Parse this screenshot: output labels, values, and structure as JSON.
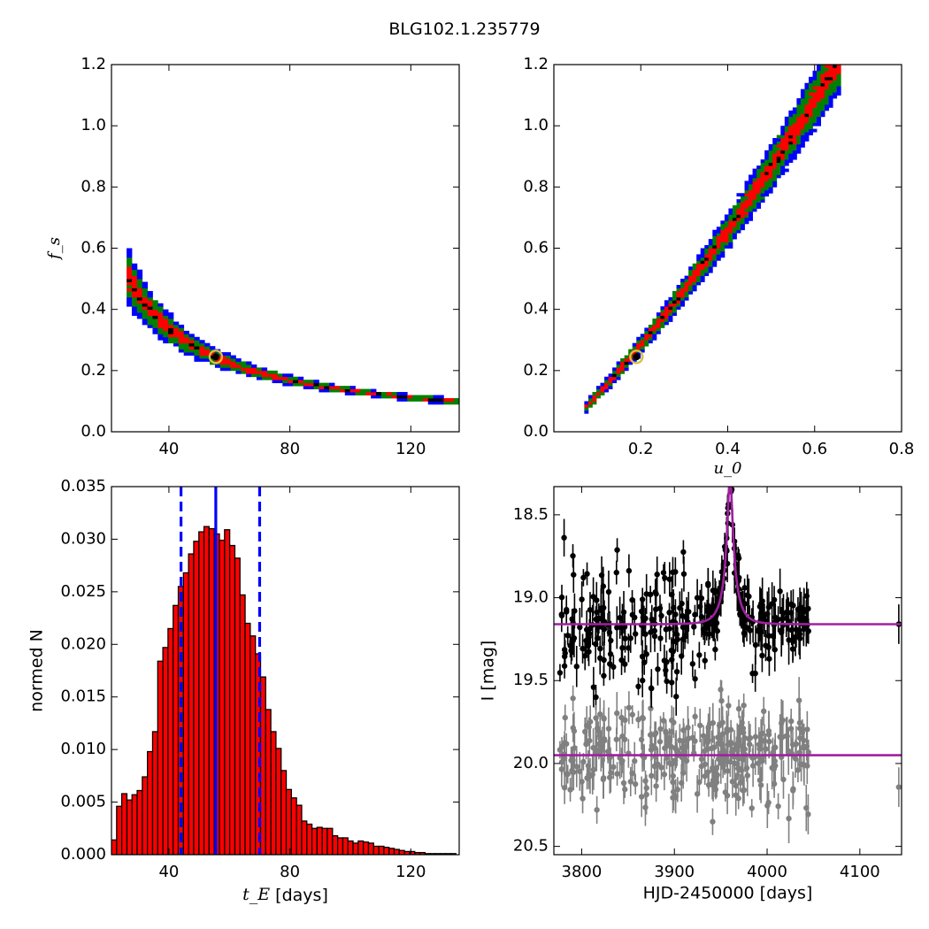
{
  "figure": {
    "title": "BLG102.1.235779"
  },
  "colors": {
    "conf_3sigma": "#0000ff",
    "conf_2sigma": "#008000",
    "conf_1sigma": "#ff0000",
    "best_bins": "#000000",
    "best_marker": "#d8c040",
    "hist_fill": "#ff0000",
    "hist_edge": "#000000",
    "hist_lines": "#0000ff",
    "data_main": "#000000",
    "data_resid": "#808080",
    "model": "#a020a0"
  },
  "chart_data": [
    {
      "id": "fs_vs_tE",
      "type": "heatmap",
      "xlabel": "",
      "ylabel": "f_s",
      "xlim": [
        21,
        136
      ],
      "ylim": [
        0.0,
        1.2
      ],
      "xticks": [
        40,
        80,
        120
      ],
      "yticks": [
        0.0,
        0.2,
        0.4,
        0.6,
        0.8,
        1.0,
        1.2
      ],
      "xtick_labels": [
        "40",
        "80",
        "120"
      ],
      "ytick_labels": [
        "0.0",
        "0.2",
        "0.4",
        "0.6",
        "0.8",
        "1.0",
        "1.2"
      ],
      "relation": "f_s * tE ≈ 13.5 (banded confidence region)",
      "best_fit": {
        "x": 55.5,
        "y": 0.245
      }
    },
    {
      "id": "fs_vs_u0",
      "type": "heatmap",
      "xlabel": "u_0",
      "ylabel": "",
      "xlim": [
        0.0,
        0.8
      ],
      "ylim": [
        0.0,
        1.2
      ],
      "xticks": [
        0.2,
        0.4,
        0.6,
        0.8
      ],
      "yticks": [
        0.0,
        0.2,
        0.4,
        0.6,
        0.8,
        1.0,
        1.2
      ],
      "xtick_labels": [
        "0.2",
        "0.4",
        "0.6",
        "0.8"
      ],
      "ytick_labels": [
        "0.0",
        "0.2",
        "0.4",
        "0.6",
        "0.8",
        "1.0",
        "1.2"
      ],
      "relation": "f_s increases with u_0 from (0.08, 0.09) to (0.64, 1.18)",
      "best_fit": {
        "x": 0.19,
        "y": 0.245
      }
    },
    {
      "id": "tE_histogram",
      "type": "bar",
      "xlabel": "t_E",
      "xlabel_unit": " [days]",
      "ylabel": "normed N",
      "xlim": [
        21,
        136
      ],
      "ylim": [
        0.0,
        0.035
      ],
      "xticks": [
        40,
        80,
        120
      ],
      "yticks": [
        0.0,
        0.005,
        0.01,
        0.015,
        0.02,
        0.025,
        0.03,
        0.035
      ],
      "xtick_labels": [
        "40",
        "80",
        "120"
      ],
      "ytick_labels": [
        "0.000",
        "0.005",
        "0.010",
        "0.015",
        "0.020",
        "0.025",
        "0.030",
        "0.035"
      ],
      "bin_start": 21,
      "bin_width": 1.7,
      "values": [
        0.0014,
        0.0046,
        0.0058,
        0.0052,
        0.0057,
        0.0061,
        0.0074,
        0.0098,
        0.0117,
        0.0184,
        0.0197,
        0.0215,
        0.0237,
        0.0255,
        0.0268,
        0.0286,
        0.0298,
        0.0307,
        0.0312,
        0.031,
        0.0305,
        0.0299,
        0.0309,
        0.0294,
        0.0282,
        0.0247,
        0.022,
        0.0208,
        0.0191,
        0.0169,
        0.0138,
        0.0117,
        0.0101,
        0.008,
        0.0062,
        0.0054,
        0.0047,
        0.0032,
        0.0029,
        0.0025,
        0.0026,
        0.0025,
        0.0025,
        0.0018,
        0.0016,
        0.0016,
        0.0013,
        0.0011,
        0.0013,
        0.0012,
        0.0011,
        0.0008,
        0.0008,
        0.0007,
        0.0006,
        0.0005,
        0.0004,
        0.0003,
        0.0003,
        0.0002,
        0.0002,
        0.0001,
        0.0001,
        0.0001,
        0.0001,
        0.0001,
        0.0001
      ],
      "median": 55.5,
      "lower": 44.0,
      "upper": 70.0
    },
    {
      "id": "light_curve",
      "type": "scatter",
      "xlabel": "HJD-2450000 [days]",
      "ylabel": "I [mag]",
      "xlim": [
        3770,
        4145
      ],
      "ylim": [
        20.55,
        18.33
      ],
      "xticks": [
        3800,
        3900,
        4000,
        4100
      ],
      "yticks": [
        18.5,
        19.0,
        19.5,
        20.0,
        20.5
      ],
      "xtick_labels": [
        "3800",
        "3900",
        "4000",
        "4100"
      ],
      "ytick_labels": [
        "18.5",
        "19.0",
        "19.5",
        "20.0",
        "20.5"
      ],
      "model": {
        "t0": 3960,
        "tE": 55.5,
        "u0": 0.19,
        "fs": 0.245,
        "I_base": 19.16,
        "resid_base": 19.95
      },
      "observations_range": [
        3775,
        4045
      ],
      "late_point": 4142
    }
  ]
}
